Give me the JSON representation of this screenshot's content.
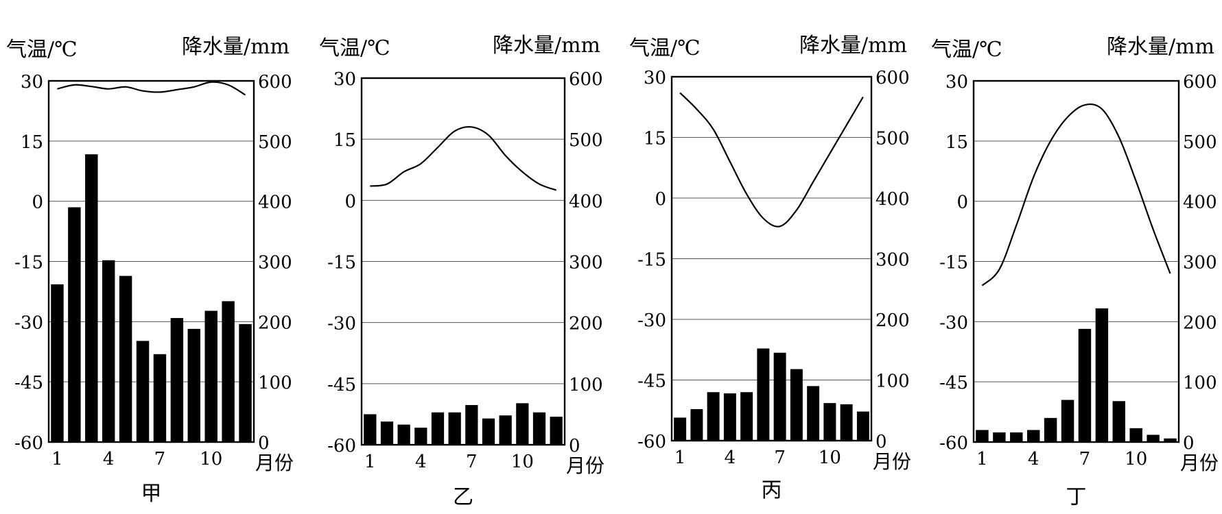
{
  "chart_data": [
    {
      "type": "bar+line",
      "title": "甲",
      "y_left_label": "气温/℃",
      "y_right_label": "降水量/mm",
      "x_unit_label": "月份",
      "y_left_range": [
        -60,
        30
      ],
      "y_left_ticks": [
        "30",
        "15",
        "0",
        "-15",
        "-30",
        "-45",
        "-60"
      ],
      "y_right_range": [
        0,
        600
      ],
      "y_right_ticks": [
        "600",
        "500",
        "400",
        "300",
        "200",
        "100",
        "0"
      ],
      "x_tick_labels": [
        "1",
        "4",
        "7",
        "10"
      ],
      "x_tick_months": [
        1,
        4,
        7,
        10
      ],
      "months": [
        1,
        2,
        3,
        4,
        5,
        6,
        7,
        8,
        9,
        10,
        11,
        12
      ],
      "precipitation": [
        262,
        390,
        478,
        302,
        276,
        168,
        146,
        206,
        188,
        218,
        234,
        196
      ],
      "temperature": [
        28,
        29,
        28.6,
        28,
        28.5,
        27.5,
        27.2,
        27.8,
        28.5,
        29.7,
        29,
        26.5
      ]
    },
    {
      "type": "bar+line",
      "title": "乙",
      "y_left_label": "气温/℃",
      "y_right_label": "降水量/mm",
      "x_unit_label": "月份",
      "y_left_range": [
        -60,
        30
      ],
      "y_left_ticks": [
        "30",
        "15",
        "0",
        "-15",
        "-30",
        "-45",
        "-60"
      ],
      "y_right_range": [
        0,
        600
      ],
      "y_right_ticks": [
        "600",
        "500",
        "400",
        "300",
        "200",
        "100",
        "0"
      ],
      "x_tick_labels": [
        "1",
        "4",
        "7",
        "10"
      ],
      "x_tick_months": [
        1,
        4,
        7,
        10
      ],
      "months": [
        1,
        2,
        3,
        4,
        5,
        6,
        7,
        8,
        9,
        10,
        11,
        12
      ],
      "precipitation": [
        50,
        38,
        33,
        28,
        53,
        53,
        65,
        43,
        48,
        68,
        53,
        46
      ],
      "temperature": [
        3.5,
        4,
        7,
        9,
        13,
        17,
        18,
        16,
        11,
        7,
        4,
        2.5
      ]
    },
    {
      "type": "bar+line",
      "title": "丙",
      "y_left_label": "气温/℃",
      "y_right_label": "降水量/mm",
      "x_unit_label": "月份",
      "y_left_range": [
        -60,
        30
      ],
      "y_left_ticks": [
        "30",
        "15",
        "0",
        "-15",
        "-30",
        "-45",
        "-60"
      ],
      "y_right_range": [
        0,
        600
      ],
      "y_right_ticks": [
        "600",
        "500",
        "400",
        "300",
        "200",
        "100",
        "0"
      ],
      "x_tick_labels": [
        "1",
        "4",
        "7",
        "10"
      ],
      "x_tick_months": [
        1,
        4,
        7,
        10
      ],
      "months": [
        1,
        2,
        3,
        4,
        5,
        6,
        7,
        8,
        9,
        10,
        11,
        12
      ],
      "precipitation": [
        38,
        52,
        80,
        78,
        80,
        152,
        145,
        118,
        90,
        62,
        60,
        48
      ],
      "temperature": [
        26,
        22,
        17,
        9,
        1,
        -5,
        -7,
        -3,
        4,
        11,
        18,
        25
      ]
    },
    {
      "type": "bar+line",
      "title": "丁",
      "y_left_label": "气温/℃",
      "y_right_label": "降水量/mm",
      "x_unit_label": "月份",
      "y_left_range": [
        -60,
        30
      ],
      "y_left_ticks": [
        "30",
        "15",
        "0",
        "-15",
        "-30",
        "-45",
        "-60"
      ],
      "y_right_range": [
        0,
        600
      ],
      "y_right_ticks": [
        "600",
        "500",
        "400",
        "300",
        "200",
        "100",
        "0"
      ],
      "x_tick_labels": [
        "1",
        "4",
        "7",
        "10"
      ],
      "x_tick_months": [
        1,
        4,
        7,
        10
      ],
      "months": [
        1,
        2,
        3,
        4,
        5,
        6,
        7,
        8,
        9,
        10,
        11,
        12
      ],
      "precipitation": [
        20,
        16,
        16,
        20,
        40,
        70,
        188,
        222,
        68,
        23,
        12,
        6
      ],
      "temperature": [
        -21,
        -17,
        -6,
        6,
        15,
        21,
        24,
        23,
        16,
        5,
        -7,
        -18
      ]
    }
  ]
}
